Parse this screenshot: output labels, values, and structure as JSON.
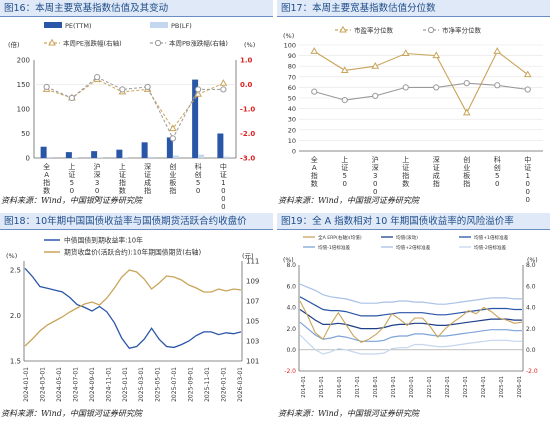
{
  "panels": [
    {
      "title": "图16：本周主要宽基指数估值及其变动",
      "source": "资料来源：Wind，中国银河证券研究院",
      "chart_data": {
        "type": "bar",
        "categories": [
          "全A指数",
          "上证50",
          "沪深300",
          "上证指数",
          "深证成指",
          "创业板指",
          "科创50",
          "中证1000"
        ],
        "left_unit": "(倍)",
        "right_unit": "(%)",
        "ylim": [
          0,
          200
        ],
        "yticks": [
          0,
          50,
          100,
          150,
          200
        ],
        "y2lim": [
          -3,
          1
        ],
        "y2ticks": [
          -3,
          -2,
          -1,
          0,
          1
        ],
        "y2tick_labels": [
          "-3.0",
          "-2.0",
          "-1.0",
          "0.0",
          "1.0"
        ],
        "bar_series": [
          {
            "name": "PE(TTM)",
            "values": [
              23,
              12,
              14,
              17,
              32,
              42,
              160,
              50
            ],
            "color": "#2a56a8"
          },
          {
            "name": "PB(LF)",
            "values": [
              2,
              1,
              1.5,
              1.5,
              2.5,
              5,
              7,
              3
            ],
            "color": "#c5d6ef"
          }
        ],
        "line_series": [
          {
            "name": "本周PE涨跌幅(右轴)",
            "values": [
              -0.2,
              -0.55,
              0.2,
              -0.3,
              -0.2,
              -1.8,
              -0.4,
              0.05
            ],
            "color": "#c9a45a",
            "marker": "triangle"
          },
          {
            "name": "本周PB涨跌幅(右轴)",
            "values": [
              -0.1,
              -0.55,
              0.3,
              -0.2,
              -0.1,
              -2.2,
              -0.2,
              -0.2
            ],
            "color": "#9a9a9a",
            "marker": "circle"
          }
        ],
        "grid": false,
        "legend": "top"
      }
    },
    {
      "title": "图17：本周主要宽基指数估值分位数",
      "source": "资料来源：Wind，中国银河证券研究院",
      "chart_data": {
        "type": "line",
        "categories": [
          "全A指数",
          "上证50",
          "沪深300",
          "上证指数",
          "深证成指",
          "创业板指",
          "科创50",
          "中证1000"
        ],
        "unit": "(%)",
        "ylim": [
          0,
          100
        ],
        "yticks": [
          0,
          10,
          20,
          30,
          40,
          50,
          60,
          70,
          80,
          90,
          100
        ],
        "series": [
          {
            "name": "市盈率分位数",
            "values": [
              94,
              76,
              80,
              92,
              90,
              36,
              94,
              72
            ],
            "color": "#c9a45a",
            "marker": "triangle"
          },
          {
            "name": "市净率分位数",
            "values": [
              56,
              48,
              52,
              60,
              60,
              64,
              62,
              58
            ],
            "color": "#9a9a9a",
            "marker": "circle"
          }
        ],
        "grid": true,
        "legend": "top"
      }
    },
    {
      "title": "图18：10年期中国国债收益率与国债期货活跃合约收盘价",
      "source": "资料来源：Wind，中国银河证券研究院",
      "chart_data": {
        "type": "line",
        "left_unit": "(%)",
        "right_unit": "(元)",
        "ylim": [
          1.5,
          2.6
        ],
        "yticks": [
          1.5,
          2.0,
          2.5
        ],
        "ytick_labels": [
          "1.5",
          "2.0",
          "2.5"
        ],
        "y2lim": [
          101,
          111
        ],
        "y2ticks": [
          101,
          103,
          105,
          107,
          109,
          111
        ],
        "x_labels": [
          "2024-01-01",
          "2024-03-01",
          "2024-05-01",
          "2024-07-01",
          "2024-09-01",
          "2024-11-01",
          "2025-01-01",
          "2025-03-01",
          "2025-05-01",
          "2025-07-01",
          "2025-09-01",
          "2025-11-01",
          "2026-01-01",
          "2026-03-01"
        ],
        "series": [
          {
            "name": "中债国债到期收益率:10年",
            "axis": "left",
            "color": "#2a56a8",
            "values": [
              2.52,
              2.43,
              2.32,
              2.3,
              2.28,
              2.26,
              2.2,
              2.12,
              2.09,
              2.05,
              2.1,
              2.04,
              1.92,
              1.75,
              1.64,
              1.66,
              1.74,
              1.86,
              1.74,
              1.66,
              1.65,
              1.68,
              1.72,
              1.78,
              1.82,
              1.82,
              1.79,
              1.81,
              1.8,
              1.82
            ]
          },
          {
            "name": "期货收盘价(活跃合约):10年期国债期货(右轴)",
            "axis": "right",
            "color": "#c9a45a",
            "values": [
              102.5,
              103.2,
              104.0,
              104.6,
              105.0,
              105.4,
              105.9,
              106.3,
              106.7,
              106.9,
              106.6,
              107.3,
              108.3,
              109.4,
              110.1,
              109.9,
              109.2,
              108.2,
              108.8,
              109.5,
              109.4,
              109.1,
              108.6,
              108.3,
              107.9,
              107.9,
              108.2,
              108.0,
              108.2,
              108.1
            ]
          }
        ],
        "grid": false,
        "legend": "top"
      }
    },
    {
      "title": "图19：全 A 指数相对 10 年期国债收益率的风险溢价率",
      "source": "资料来源：Wind，中国银河证券研究院",
      "chart_data": {
        "type": "line",
        "left_unit": "(%)",
        "right_unit": "(%)",
        "ylim": [
          -2,
          8
        ],
        "yticks": [
          -2,
          0,
          2,
          4,
          6,
          8
        ],
        "ytick_labels": [
          "-2.0",
          "0.0",
          "2.0",
          "4.0",
          "6.0",
          "8.0"
        ],
        "y2ticks": [
          -2,
          0,
          2,
          4,
          6,
          8
        ],
        "y2tick_labels": [
          "-2.0",
          "0.0",
          "2.0",
          "4.0",
          "6.0",
          "8.0"
        ],
        "x_labels": [
          "2014-01",
          "2015-01",
          "2016-01",
          "2017-01",
          "2018-01",
          "2019-01",
          "2020-01",
          "2021-01",
          "2022-01",
          "2023-01",
          "2024-01",
          "2025-01",
          "2026-01"
        ],
        "legend_items": [
          "全A ERP(右轴)(均值)",
          "均值(滚动)",
          "均值+1倍标准差",
          "均值-1倍标准差",
          "均值+2倍标准差",
          "均值-2倍标准差"
        ],
        "series": [
          {
            "name": "全A ERP(右轴)(均值)",
            "color": "#c9a45a",
            "values": [
              4.6,
              3.2,
              1.6,
              1.0,
              2.4,
              3.5,
              2.4,
              1.3,
              0.7,
              1.0,
              1.5,
              2.2,
              3.4,
              2.9,
              2.3,
              3.0,
              3.0,
              2.2,
              1.2,
              2.0,
              2.6,
              3.1,
              3.7,
              3.4,
              4.0,
              3.6,
              3.0,
              2.8,
              2.5,
              2.6
            ]
          },
          {
            "name": "均值(滚动)",
            "color": "#1f3f8a",
            "values": [
              3.8,
              3.3,
              2.8,
              2.4,
              2.4,
              2.5,
              2.4,
              2.2,
              2.0,
              2.0,
              2.0,
              2.1,
              2.3,
              2.4,
              2.4,
              2.5,
              2.5,
              2.4,
              2.3,
              2.3,
              2.4,
              2.5,
              2.6,
              2.7,
              2.8,
              2.9,
              2.9,
              2.9,
              2.8,
              2.8
            ]
          },
          {
            "name": "均值+1倍标准差",
            "color": "#2a56a8",
            "values": [
              5.0,
              4.6,
              4.2,
              3.8,
              3.7,
              3.7,
              3.6,
              3.4,
              3.2,
              3.2,
              3.2,
              3.3,
              3.4,
              3.5,
              3.5,
              3.5,
              3.5,
              3.4,
              3.3,
              3.3,
              3.4,
              3.5,
              3.6,
              3.7,
              3.8,
              3.9,
              3.9,
              3.9,
              3.8,
              3.8
            ]
          },
          {
            "name": "均值-1倍标准差",
            "color": "#7ea4d8",
            "values": [
              2.6,
              2.0,
              1.4,
              1.0,
              1.1,
              1.3,
              1.2,
              1.0,
              0.8,
              0.8,
              0.8,
              0.9,
              1.2,
              1.3,
              1.3,
              1.5,
              1.5,
              1.4,
              1.3,
              1.3,
              1.4,
              1.5,
              1.6,
              1.7,
              1.8,
              1.9,
              1.9,
              1.9,
              1.8,
              1.8
            ]
          },
          {
            "name": "均值+2倍标准差",
            "color": "#a9c1e6",
            "values": [
              6.2,
              5.9,
              5.6,
              5.2,
              5.0,
              4.9,
              4.8,
              4.6,
              4.4,
              4.4,
              4.4,
              4.5,
              4.5,
              4.6,
              4.6,
              4.5,
              4.5,
              4.4,
              4.3,
              4.3,
              4.4,
              4.5,
              4.6,
              4.7,
              4.8,
              4.9,
              4.9,
              4.9,
              4.8,
              4.8
            ]
          },
          {
            "name": "均值-2倍标准差",
            "color": "#c5d6ef",
            "values": [
              1.4,
              0.7,
              0.0,
              -0.4,
              -0.2,
              0.1,
              0.0,
              -0.2,
              -0.4,
              -0.4,
              -0.4,
              -0.3,
              0.1,
              0.2,
              0.2,
              0.5,
              0.5,
              0.4,
              0.3,
              0.3,
              0.4,
              0.5,
              0.6,
              0.7,
              0.8,
              0.9,
              0.9,
              0.9,
              0.8,
              0.8
            ]
          }
        ],
        "grid": false,
        "legend": "top"
      }
    }
  ]
}
